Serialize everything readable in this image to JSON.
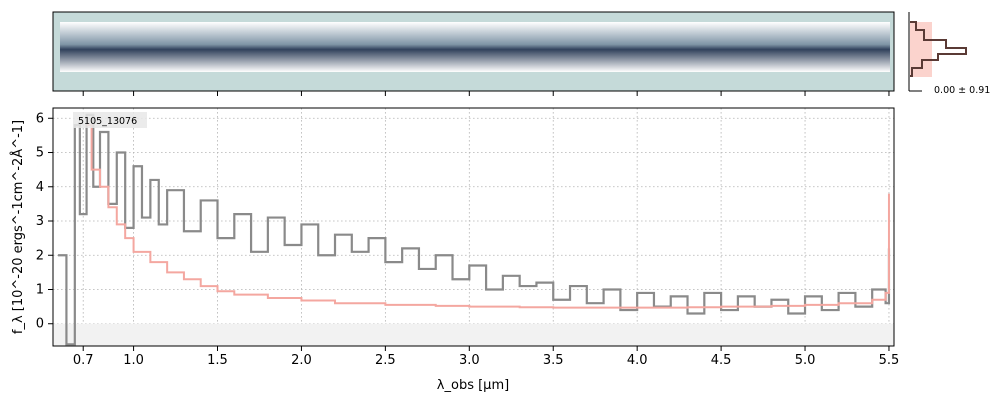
{
  "chart_data": {
    "type": "line",
    "object_label": "5105_13076",
    "xlabel": "λ_obs [μm]",
    "ylabel": "f_λ [10^-20 ergs^-1cm^-2Å^-1]",
    "xlim": [
      0.52,
      5.53
    ],
    "ylim": [
      -0.65,
      6.3
    ],
    "x_ticks": [
      0.7,
      1.0,
      1.5,
      2.0,
      2.5,
      3.0,
      3.5,
      4.0,
      4.5,
      5.0,
      5.5
    ],
    "x_tick_labels": [
      "0.7",
      "1.0",
      "1.5",
      "2.0",
      "2.5",
      "3.0",
      "3.5",
      "4.0",
      "4.5",
      "5.0",
      "5.5"
    ],
    "y_ticks": [
      0,
      1,
      2,
      3,
      4,
      5,
      6
    ],
    "y_tick_labels": [
      "0",
      "1",
      "2",
      "3",
      "4",
      "5",
      "6"
    ],
    "grid": true,
    "series": [
      {
        "color": "#8a8a8a",
        "style": "step",
        "x": [
          0.55,
          0.6,
          0.65,
          0.68,
          0.72,
          0.76,
          0.8,
          0.85,
          0.9,
          0.95,
          1.0,
          1.05,
          1.1,
          1.15,
          1.2,
          1.3,
          1.4,
          1.5,
          1.6,
          1.7,
          1.8,
          1.9,
          2.0,
          2.1,
          2.2,
          2.3,
          2.4,
          2.5,
          2.6,
          2.7,
          2.8,
          2.9,
          3.0,
          3.1,
          3.2,
          3.3,
          3.4,
          3.5,
          3.6,
          3.7,
          3.8,
          3.9,
          4.0,
          4.1,
          4.2,
          4.3,
          4.4,
          4.5,
          4.6,
          4.7,
          4.8,
          4.9,
          5.0,
          5.1,
          5.2,
          5.3,
          5.4,
          5.48,
          5.5
        ],
        "y": [
          2.0,
          -0.6,
          5.8,
          3.2,
          6.1,
          4.0,
          5.6,
          3.5,
          5.0,
          2.8,
          4.6,
          3.1,
          4.2,
          2.9,
          3.9,
          2.7,
          3.6,
          2.5,
          3.2,
          2.1,
          3.1,
          2.3,
          2.9,
          2.0,
          2.6,
          2.1,
          2.5,
          1.8,
          2.2,
          1.6,
          2.0,
          1.3,
          1.7,
          1.0,
          1.4,
          1.1,
          1.2,
          0.7,
          1.1,
          0.6,
          1.0,
          0.4,
          0.9,
          0.5,
          0.8,
          0.3,
          0.9,
          0.4,
          0.8,
          0.5,
          0.7,
          0.3,
          0.8,
          0.4,
          0.9,
          0.5,
          1.0,
          0.6,
          2.2
        ]
      },
      {
        "color": "#f4a7a0",
        "style": "step",
        "x": [
          0.72,
          0.75,
          0.8,
          0.85,
          0.9,
          0.95,
          1.0,
          1.1,
          1.2,
          1.3,
          1.4,
          1.5,
          1.6,
          1.8,
          2.0,
          2.2,
          2.5,
          2.8,
          3.0,
          3.3,
          3.5,
          3.8,
          4.0,
          4.3,
          4.5,
          4.8,
          5.0,
          5.2,
          5.4,
          5.48,
          5.5
        ],
        "y": [
          5.8,
          4.5,
          4.0,
          3.4,
          2.9,
          2.5,
          2.1,
          1.8,
          1.5,
          1.3,
          1.1,
          0.95,
          0.85,
          0.75,
          0.68,
          0.6,
          0.55,
          0.52,
          0.5,
          0.48,
          0.47,
          0.47,
          0.47,
          0.48,
          0.5,
          0.52,
          0.55,
          0.6,
          0.7,
          0.9,
          3.8
        ]
      }
    ],
    "side_histogram": {
      "annotation": "0.00 ± 0.91"
    }
  }
}
